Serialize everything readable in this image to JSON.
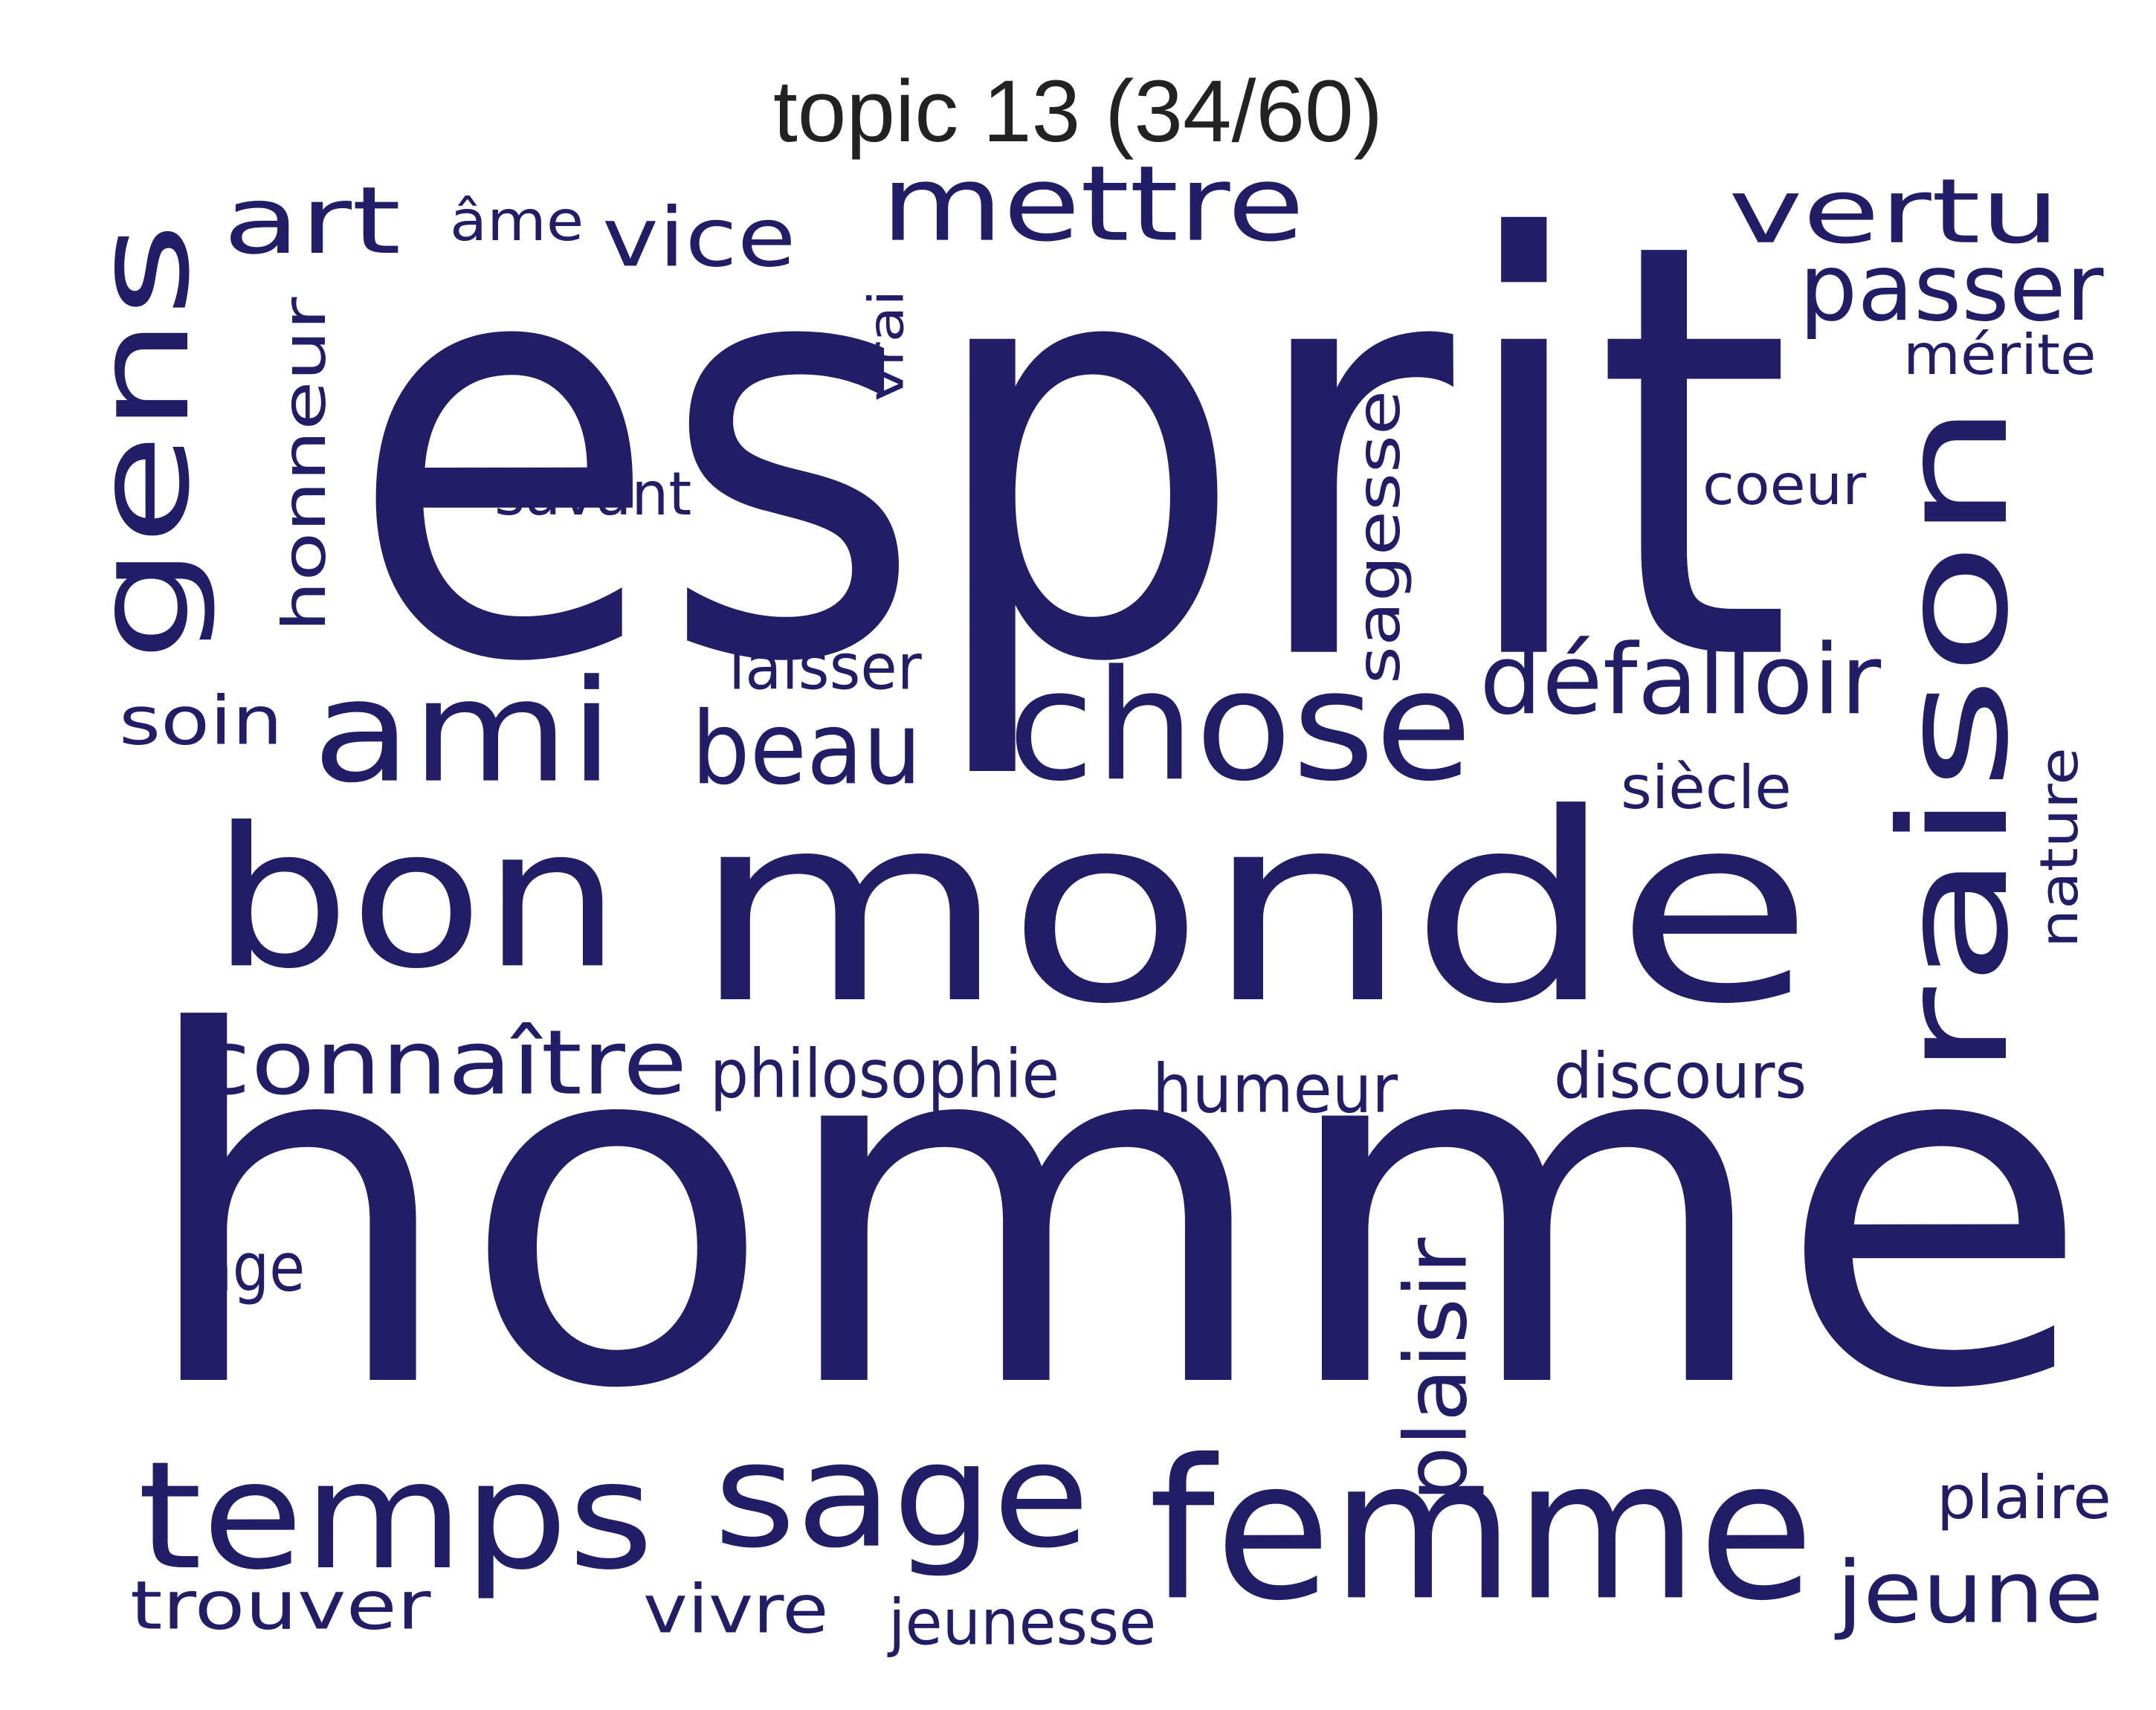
{
  "title": "topic 13 (34/60)",
  "colors": {
    "background": "#ffffff",
    "word": "#221d67",
    "title": "#222222"
  },
  "words": [
    "esprit",
    "homme",
    "monde",
    "raison",
    "bon",
    "femme",
    "chose",
    "mettre",
    "gens",
    "temps",
    "sage",
    "ami",
    "vertu",
    "art",
    "connaître",
    "défalloir",
    "beau",
    "vice",
    "passer",
    "jeune",
    "trouver",
    "honneur",
    "plaisir",
    "sagesse",
    "philosophie",
    "vivre",
    "soin",
    "humeur",
    "discours",
    "jeunesse",
    "laisser",
    "savant",
    "coeur",
    "siècle",
    "mérite",
    "nature",
    "plaire",
    "âge",
    "vrai",
    "âme"
  ]
}
